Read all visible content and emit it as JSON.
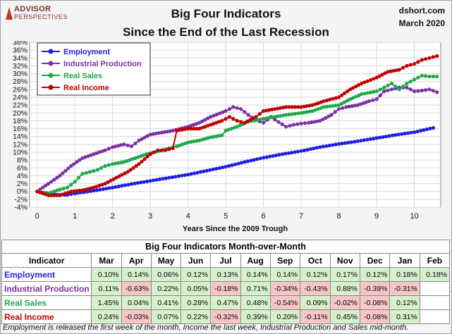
{
  "header": {
    "logo_line1": "ADVISOR",
    "logo_line2": "PERSPECTIVES",
    "title_line1": "Big Four Indicators",
    "title_line2": "Since the End of the Last Recession",
    "site": "dshort.com",
    "date": "March 2020"
  },
  "chart_data": {
    "type": "line",
    "title": "Big Four Indicators Since the End of the Last Recession",
    "xlabel": "Years Since the 2009 Trough",
    "ylabel": "",
    "xlim": [
      -0.2,
      10.7
    ],
    "ylim": [
      -4,
      38
    ],
    "x_ticks": [
      "0",
      "1",
      "2",
      "3",
      "4",
      "5",
      "6",
      "7",
      "8",
      "9",
      "10"
    ],
    "y_ticks": [
      "-4%",
      "-2%",
      "0%",
      "2%",
      "4%",
      "6%",
      "8%",
      "10%",
      "12%",
      "14%",
      "16%",
      "18%",
      "20%",
      "22%",
      "24%",
      "26%",
      "28%",
      "30%",
      "32%",
      "34%",
      "36%",
      "38%"
    ],
    "grid": true,
    "legend_position": "top-left",
    "series": [
      {
        "name": "Employment",
        "color": "#1f1fe0",
        "points": [
          [
            0,
            0
          ],
          [
            0.5,
            -0.8
          ],
          [
            0.8,
            -0.9
          ],
          [
            1,
            -0.5
          ],
          [
            1.5,
            0.2
          ],
          [
            2,
            1
          ],
          [
            2.5,
            1.9
          ],
          [
            3,
            2.7
          ],
          [
            3.5,
            3.5
          ],
          [
            4,
            4.3
          ],
          [
            4.5,
            5.3
          ],
          [
            5,
            6.3
          ],
          [
            5.5,
            7.5
          ],
          [
            6,
            8.6
          ],
          [
            6.5,
            9.5
          ],
          [
            7,
            10.3
          ],
          [
            7.5,
            11.3
          ],
          [
            8,
            12.1
          ],
          [
            8.5,
            12.8
          ],
          [
            9,
            13.6
          ],
          [
            9.5,
            14.4
          ],
          [
            10,
            15.1
          ],
          [
            10.5,
            16.2
          ]
        ]
      },
      {
        "name": "Industrial Production",
        "color": "#7b2fa8",
        "points": [
          [
            0,
            0
          ],
          [
            0.3,
            2
          ],
          [
            0.6,
            4
          ],
          [
            0.9,
            6.5
          ],
          [
            1.2,
            8.5
          ],
          [
            1.5,
            9.5
          ],
          [
            1.8,
            10.5
          ],
          [
            2,
            11.3
          ],
          [
            2.3,
            12
          ],
          [
            2.5,
            11.5
          ],
          [
            2.7,
            13
          ],
          [
            3,
            14.5
          ],
          [
            3.3,
            15
          ],
          [
            3.6,
            15.5
          ],
          [
            4,
            16.5
          ],
          [
            4.3,
            17.5
          ],
          [
            4.6,
            19
          ],
          [
            5,
            20.5
          ],
          [
            5.2,
            21.5
          ],
          [
            5.4,
            21
          ],
          [
            5.6,
            19.5
          ],
          [
            5.8,
            18.2
          ],
          [
            6,
            17.5
          ],
          [
            6.2,
            19
          ],
          [
            6.4,
            17.7
          ],
          [
            6.6,
            16.5
          ],
          [
            6.8,
            17
          ],
          [
            7,
            17.3
          ],
          [
            7.2,
            17.5
          ],
          [
            7.5,
            18
          ],
          [
            7.8,
            19.5
          ],
          [
            8,
            21
          ],
          [
            8.2,
            21.5
          ],
          [
            8.5,
            22
          ],
          [
            8.8,
            23
          ],
          [
            9,
            23.5
          ],
          [
            9.2,
            25.5
          ],
          [
            9.4,
            26
          ],
          [
            9.6,
            26.5
          ],
          [
            9.8,
            26.5
          ],
          [
            10,
            25.5
          ],
          [
            10.2,
            25.7
          ],
          [
            10.4,
            26
          ],
          [
            10.6,
            25.3
          ]
        ]
      },
      {
        "name": "Real Sales",
        "color": "#1fa84a",
        "points": [
          [
            0,
            0
          ],
          [
            0.3,
            -0.5
          ],
          [
            0.6,
            0.5
          ],
          [
            0.8,
            1
          ],
          [
            1,
            2.5
          ],
          [
            1.2,
            4.5
          ],
          [
            1.4,
            5
          ],
          [
            1.6,
            5.5
          ],
          [
            1.8,
            6.5
          ],
          [
            2,
            7
          ],
          [
            2.3,
            7.5
          ],
          [
            2.6,
            8.5
          ],
          [
            2.9,
            9.5
          ],
          [
            3.2,
            10.2
          ],
          [
            3.5,
            11
          ],
          [
            3.7,
            11.5
          ],
          [
            4,
            12.5
          ],
          [
            4.3,
            13
          ],
          [
            4.6,
            13.8
          ],
          [
            4.9,
            14.3
          ],
          [
            5,
            15.5
          ],
          [
            5.3,
            16.5
          ],
          [
            5.6,
            17.8
          ],
          [
            6,
            18.5
          ],
          [
            6.3,
            19
          ],
          [
            6.6,
            19.5
          ],
          [
            7,
            20
          ],
          [
            7.3,
            20.5
          ],
          [
            7.6,
            21.5
          ],
          [
            8,
            22
          ],
          [
            8.3,
            23.5
          ],
          [
            8.6,
            24.8
          ],
          [
            9,
            25.5
          ],
          [
            9.2,
            26.5
          ],
          [
            9.4,
            27.5
          ],
          [
            9.6,
            26
          ],
          [
            9.8,
            27.5
          ],
          [
            10,
            28.5
          ],
          [
            10.2,
            29.5
          ],
          [
            10.4,
            29.3
          ],
          [
            10.6,
            29.3
          ]
        ]
      },
      {
        "name": "Real Income",
        "color": "#c00000",
        "points": [
          [
            0,
            0
          ],
          [
            0.3,
            -1
          ],
          [
            0.6,
            -1
          ],
          [
            0.9,
            0
          ],
          [
            1.2,
            0.3
          ],
          [
            1.5,
            1
          ],
          [
            1.8,
            2
          ],
          [
            2.1,
            3.5
          ],
          [
            2.4,
            5
          ],
          [
            2.7,
            7
          ],
          [
            3,
            9.5
          ],
          [
            3.2,
            10.5
          ],
          [
            3.4,
            10.5
          ],
          [
            3.6,
            11
          ],
          [
            3.7,
            15.5
          ],
          [
            4,
            16
          ],
          [
            4.3,
            16
          ],
          [
            4.6,
            17
          ],
          [
            4.9,
            18
          ],
          [
            5.1,
            19
          ],
          [
            5.3,
            18
          ],
          [
            5.5,
            17.5
          ],
          [
            5.8,
            19
          ],
          [
            6,
            20.5
          ],
          [
            6.3,
            21
          ],
          [
            6.6,
            21.5
          ],
          [
            7,
            21.5
          ],
          [
            7.3,
            22
          ],
          [
            7.6,
            23
          ],
          [
            8,
            24
          ],
          [
            8.3,
            26
          ],
          [
            8.6,
            27.5
          ],
          [
            9,
            29
          ],
          [
            9.3,
            30.5
          ],
          [
            9.6,
            31
          ],
          [
            9.8,
            32
          ],
          [
            10,
            32.5
          ],
          [
            10.2,
            33.5
          ],
          [
            10.4,
            34
          ],
          [
            10.6,
            34.5
          ]
        ]
      }
    ]
  },
  "table": {
    "title": "Big Four Indicators Month-over-Month",
    "header_label": "Indicator",
    "months": [
      "Mar",
      "Apr",
      "May",
      "Jun",
      "Jul",
      "Aug",
      "Sep",
      "Oct",
      "Nov",
      "Dec",
      "Jan",
      "Feb"
    ],
    "rows": [
      {
        "name": "Employment",
        "color": "#1f1fe0",
        "values": [
          "0.10%",
          "0.14%",
          "0.06%",
          "0.12%",
          "0.13%",
          "0.14%",
          "0.14%",
          "0.12%",
          "0.17%",
          "0.12%",
          "0.18%",
          "0.18%"
        ]
      },
      {
        "name": "Industrial Production",
        "color": "#7b2fa8",
        "values": [
          "0.11%",
          "-0.63%",
          "0.22%",
          "0.05%",
          "-0.18%",
          "0.71%",
          "-0.34%",
          "-0.43%",
          "0.88%",
          "-0.39%",
          "-0.31%",
          ""
        ]
      },
      {
        "name": "Real Sales",
        "color": "#1fa84a",
        "values": [
          "1.45%",
          "0.04%",
          "0.41%",
          "0.28%",
          "0.47%",
          "0.48%",
          "-0.54%",
          "0.09%",
          "-0.02%",
          "-0.08%",
          "0.12%",
          ""
        ]
      },
      {
        "name": "Real Income",
        "color": "#c00000",
        "values": [
          "0.24%",
          "-0.03%",
          "0.07%",
          "0.22%",
          "-0.32%",
          "0.39%",
          "0.20%",
          "-0.11%",
          "0.45%",
          "-0.08%",
          "0.31%",
          ""
        ]
      }
    ]
  },
  "footnote": "Employment is released the first week of the month, Income the last week, Industrial Production and Sales mid-month."
}
